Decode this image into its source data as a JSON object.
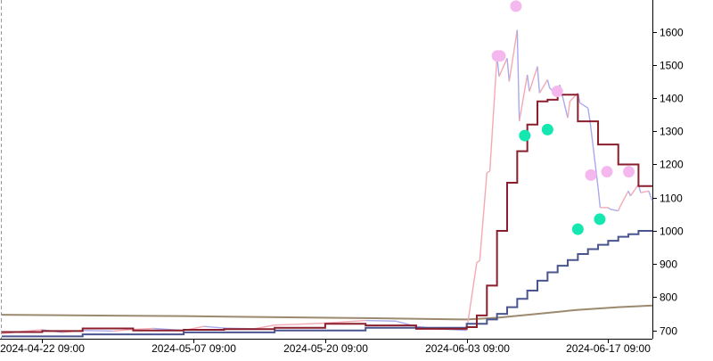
{
  "chart_data": {
    "type": "line",
    "title": "",
    "xlabel": "",
    "ylabel": "",
    "grid": false,
    "y_axis_side": "right",
    "ylim": [
      675,
      1690
    ],
    "xlim": [
      "2024-04-18 09:00",
      "2024-06-21 18:00"
    ],
    "x_ticks": [
      "2024-04-22 09:00",
      "2024-05-07 09:00",
      "2024-05-20 09:00",
      "2024-06-03 09:00",
      "2024-06-17 09:00"
    ],
    "y_ticks": [
      700,
      800,
      900,
      1000,
      1100,
      1200,
      1300,
      1400,
      1500,
      1600
    ],
    "colors": {
      "price_up": "#f4a9b4",
      "price_down": "#a9a9ee",
      "fast_step": "#8b1e2c",
      "mid_step": "#4a5590",
      "slow_line": "#9c8a70",
      "peak_marker": "#f5b8ee",
      "trough_marker": "#14e8b0"
    },
    "series": [
      {
        "role": "price",
        "x": [
          "2024-04-18 09:00",
          "2024-04-20 09:00",
          "2024-04-22 09:00",
          "2024-04-24 09:00",
          "2024-04-26 09:00",
          "2024-04-29 09:00",
          "2024-05-01 09:00",
          "2024-05-03 09:00",
          "2024-05-06 09:00",
          "2024-05-08 09:00",
          "2024-05-10 09:00",
          "2024-05-13 09:00",
          "2024-05-15 09:00",
          "2024-05-17 09:00",
          "2024-05-20 09:00",
          "2024-05-22 09:00",
          "2024-05-24 09:00",
          "2024-05-27 09:00",
          "2024-05-29 09:00",
          "2024-05-31 09:00",
          "2024-06-03 09:00",
          "2024-06-04 09:00",
          "2024-06-04 16:00",
          "2024-06-05 09:00",
          "2024-06-05 16:00",
          "2024-06-06 09:00",
          "2024-06-06 14:00",
          "2024-06-07 09:00",
          "2024-06-07 14:00",
          "2024-06-08 09:00",
          "2024-06-08 14:00",
          "2024-06-09 09:00",
          "2024-06-09 14:00",
          "2024-06-10 09:00",
          "2024-06-10 14:00",
          "2024-06-11 09:00",
          "2024-06-11 14:00",
          "2024-06-12 09:00",
          "2024-06-12 14:00",
          "2024-06-13 09:00",
          "2024-06-13 14:00",
          "2024-06-14 09:00",
          "2024-06-14 14:00",
          "2024-06-15 09:00",
          "2024-06-15 14:00",
          "2024-06-16 09:00",
          "2024-06-16 14:00",
          "2024-06-17 09:00",
          "2024-06-17 14:00",
          "2024-06-18 09:00",
          "2024-06-18 14:00",
          "2024-06-19 09:00",
          "2024-06-19 14:00",
          "2024-06-20 09:00",
          "2024-06-20 14:00",
          "2024-06-21 09:00",
          "2024-06-21 18:00"
        ],
        "values": [
          690,
          697,
          702,
          694,
          700,
          698,
          703,
          706,
          700,
          712,
          707,
          705,
          716,
          718,
          722,
          726,
          730,
          728,
          712,
          705,
          700,
          905,
          910,
          1175,
          1180,
          1525,
          1465,
          1520,
          1450,
          1605,
          1330,
          1470,
          1420,
          1495,
          1415,
          1455,
          1430,
          1410,
          1440,
          1340,
          1390,
          1415,
          1385,
          1370,
          1330,
          1130,
          1070,
          1070,
          1065,
          1060,
          1075,
          1120,
          1105,
          1140,
          1115,
          1120,
          1090
        ]
      },
      {
        "role": "fast_step",
        "x": [
          "2024-04-18 09:00",
          "2024-04-22 09:00",
          "2024-04-26 09:00",
          "2024-05-01 09:00",
          "2024-05-06 09:00",
          "2024-05-10 09:00",
          "2024-05-15 09:00",
          "2024-05-20 09:00",
          "2024-05-24 09:00",
          "2024-05-29 09:00",
          "2024-06-03 09:00",
          "2024-06-04 09:00",
          "2024-06-05 09:00",
          "2024-06-06 09:00",
          "2024-06-07 09:00",
          "2024-06-08 09:00",
          "2024-06-09 09:00",
          "2024-06-10 09:00",
          "2024-06-11 09:00",
          "2024-06-12 09:00",
          "2024-06-13 09:00",
          "2024-06-14 09:00",
          "2024-06-15 09:00",
          "2024-06-16 09:00",
          "2024-06-17 09:00",
          "2024-06-18 09:00",
          "2024-06-19 09:00",
          "2024-06-20 09:00",
          "2024-06-21 18:00"
        ],
        "values": [
          695,
          698,
          706,
          700,
          702,
          704,
          708,
          720,
          715,
          705,
          710,
          745,
          835,
          1000,
          1145,
          1240,
          1320,
          1390,
          1395,
          1410,
          1410,
          1330,
          1330,
          1260,
          1260,
          1200,
          1200,
          1135,
          1135
        ]
      },
      {
        "role": "mid_step",
        "x": [
          "2024-04-18 09:00",
          "2024-04-26 09:00",
          "2024-05-06 09:00",
          "2024-05-15 09:00",
          "2024-05-24 09:00",
          "2024-06-03 09:00",
          "2024-06-05 09:00",
          "2024-06-06 09:00",
          "2024-06-07 09:00",
          "2024-06-08 09:00",
          "2024-06-09 09:00",
          "2024-06-10 09:00",
          "2024-06-11 09:00",
          "2024-06-12 09:00",
          "2024-06-13 09:00",
          "2024-06-14 09:00",
          "2024-06-15 09:00",
          "2024-06-16 09:00",
          "2024-06-17 09:00",
          "2024-06-18 09:00",
          "2024-06-19 09:00",
          "2024-06-20 09:00",
          "2024-06-21 18:00"
        ],
        "values": [
          682,
          688,
          694,
          700,
          708,
          720,
          733,
          750,
          770,
          795,
          820,
          850,
          875,
          895,
          912,
          930,
          945,
          958,
          970,
          982,
          990,
          1000,
          1000
        ]
      },
      {
        "role": "slow_line",
        "x": [
          "2024-04-18 09:00",
          "2024-05-06 09:00",
          "2024-05-24 09:00",
          "2024-06-03 09:00",
          "2024-06-06 09:00",
          "2024-06-10 09:00",
          "2024-06-14 09:00",
          "2024-06-18 09:00",
          "2024-06-21 18:00"
        ],
        "values": [
          747,
          743,
          737,
          733,
          738,
          750,
          762,
          770,
          775
        ]
      }
    ],
    "peaks": [
      {
        "x": "2024-06-06 10:00",
        "y": 1527
      },
      {
        "x": "2024-06-06 16:00",
        "y": 1527
      },
      {
        "x": "2024-06-08 06:00",
        "y": 1677
      },
      {
        "x": "2024-06-12 08:00",
        "y": 1420
      },
      {
        "x": "2024-06-15 16:00",
        "y": 1168
      },
      {
        "x": "2024-06-17 06:00",
        "y": 1178
      },
      {
        "x": "2024-06-19 10:00",
        "y": 1178
      }
    ],
    "troughs": [
      {
        "x": "2024-06-09 03:00",
        "y": 1287
      },
      {
        "x": "2024-06-11 09:00",
        "y": 1305
      },
      {
        "x": "2024-06-14 09:00",
        "y": 1005
      },
      {
        "x": "2024-06-16 13:00",
        "y": 1035
      }
    ]
  }
}
